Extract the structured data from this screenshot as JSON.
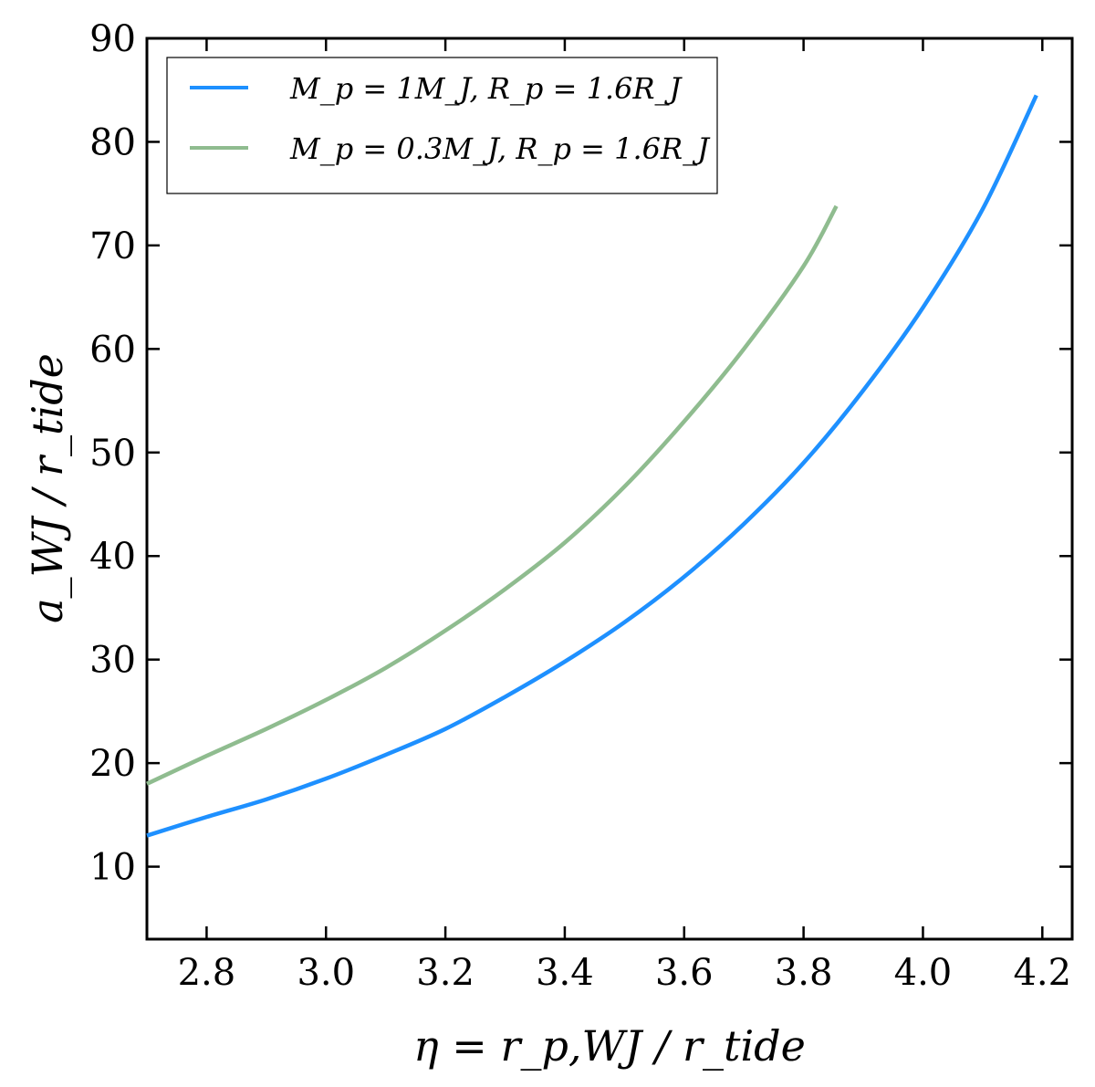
{
  "chart_data": {
    "type": "line",
    "xlabel": "η = r_p,WJ / r_tide",
    "ylabel": "a_WJ / r_tide",
    "xlim": [
      2.7,
      4.25
    ],
    "ylim": [
      3,
      90
    ],
    "xticks": [
      2.8,
      3.0,
      3.2,
      3.4,
      3.6,
      3.8,
      4.0,
      4.2
    ],
    "xtick_labels": [
      "2.8",
      "3.0",
      "3.2",
      "3.4",
      "3.6",
      "3.8",
      "4.0",
      "4.2"
    ],
    "yticks": [
      10,
      20,
      30,
      40,
      50,
      60,
      70,
      80,
      90
    ],
    "ytick_labels": [
      "10",
      "20",
      "30",
      "40",
      "50",
      "60",
      "70",
      "80",
      "90"
    ],
    "grid": false,
    "legend_position": "top-left",
    "series": [
      {
        "name": "M_p = 1M_J, R_p = 1.6R_J",
        "color": "#1e90ff",
        "x": [
          2.7,
          2.8,
          2.9,
          3.0,
          3.1,
          3.2,
          3.3,
          3.4,
          3.5,
          3.6,
          3.7,
          3.8,
          3.9,
          4.0,
          4.1,
          4.19
        ],
        "y": [
          13.0,
          14.8,
          16.5,
          18.5,
          20.8,
          23.3,
          26.4,
          29.8,
          33.6,
          38.0,
          43.1,
          49.0,
          56.0,
          64.0,
          73.5,
          84.5
        ]
      },
      {
        "name": "M_p = 0.3M_J, R_p = 1.6R_J",
        "color": "#8fbc8f",
        "x": [
          2.7,
          2.8,
          2.9,
          3.0,
          3.1,
          3.2,
          3.3,
          3.4,
          3.5,
          3.6,
          3.7,
          3.8,
          3.855
        ],
        "y": [
          18.0,
          20.7,
          23.3,
          26.1,
          29.2,
          32.8,
          36.8,
          41.3,
          46.7,
          53.0,
          60.0,
          68.0,
          73.8
        ]
      }
    ]
  }
}
